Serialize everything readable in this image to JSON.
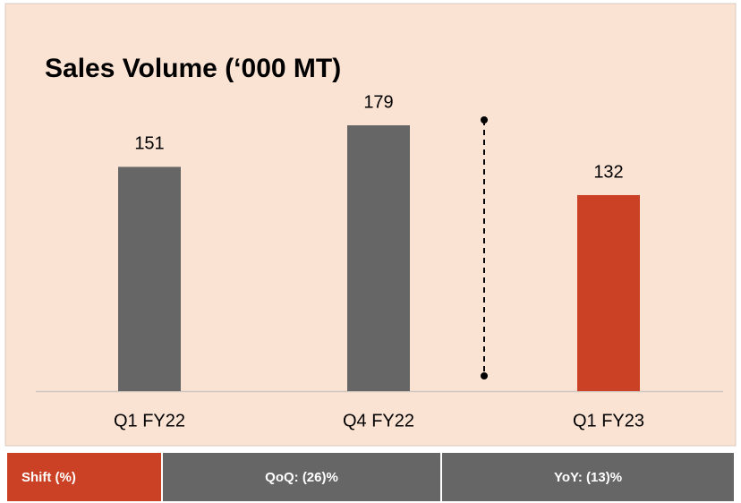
{
  "chart_data": {
    "type": "bar",
    "title": "Sales Volume (‘000 MT)",
    "categories": [
      "Q1 FY22",
      "Q4 FY22",
      "Q1 FY23"
    ],
    "values": [
      151,
      179,
      132
    ],
    "colors": [
      "#666666",
      "#666666",
      "#cb4125"
    ]
  },
  "footer": {
    "label": "Shift (%)",
    "items": [
      "QoQ: (26)%",
      "YoY: (13)%"
    ]
  }
}
